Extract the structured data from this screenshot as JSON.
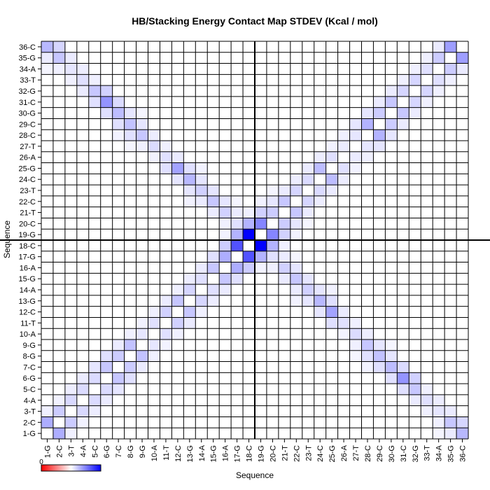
{
  "chart_data": {
    "type": "heatmap",
    "title": "HB/Stacking Energy Contact Map STDEV (Kcal / mol)",
    "xlabel": "Sequence",
    "ylabel": "Sequence",
    "labels": [
      "1-G",
      "2-C",
      "3-T",
      "4-A",
      "5-C",
      "6-G",
      "7-C",
      "8-G",
      "9-G",
      "10-A",
      "11-T",
      "12-C",
      "13-G",
      "14-A",
      "15-G",
      "16-A",
      "17-G",
      "18-C",
      "19-G",
      "20-C",
      "21-T",
      "22-C",
      "23-T",
      "24-C",
      "25-G",
      "26-A",
      "27-T",
      "28-C",
      "29-C",
      "30-G",
      "31-C",
      "32-G",
      "33-T",
      "34-A",
      "35-G",
      "36-C"
    ],
    "x_tick_labels": [
      "1-G",
      "2-C",
      "3-T",
      "4-A",
      "5-C",
      "6-G",
      "7-C",
      "8-G",
      "9-G",
      "10-A",
      "11-T",
      "12-C",
      "13-G",
      "14-A",
      "15-G",
      "16-A",
      "17-G",
      "18-C",
      "19-G",
      "20-C",
      "21-T",
      "22-C",
      "23-T",
      "24-C",
      "25-G",
      "26-A",
      "27-T",
      "28-C",
      "29-C",
      "30-G",
      "31-C",
      "32-G",
      "33-T",
      "34-A",
      "35-G",
      "36-C"
    ],
    "colorbar": {
      "min_label": "0",
      "colors": [
        "#ff0000",
        "#ffffff",
        "#0000ff"
      ]
    },
    "divider_after_index": 18,
    "dominant_cell": {
      "i": 18,
      "j": 19,
      "value": 1.0
    },
    "grid": true,
    "cells": [
      {
        "i": 1,
        "j": 2,
        "v": 0.32
      },
      {
        "i": 2,
        "j": 3,
        "v": 0.2
      },
      {
        "i": 3,
        "j": 4,
        "v": 0.15
      },
      {
        "i": 4,
        "j": 5,
        "v": 0.14
      },
      {
        "i": 5,
        "j": 6,
        "v": 0.14
      },
      {
        "i": 6,
        "j": 7,
        "v": 0.22
      },
      {
        "i": 7,
        "j": 8,
        "v": 0.2
      },
      {
        "i": 8,
        "j": 9,
        "v": 0.24
      },
      {
        "i": 9,
        "j": 10,
        "v": 0.1
      },
      {
        "i": 10,
        "j": 11,
        "v": 0.12
      },
      {
        "i": 11,
        "j": 12,
        "v": 0.18
      },
      {
        "i": 12,
        "j": 13,
        "v": 0.22
      },
      {
        "i": 13,
        "j": 14,
        "v": 0.16
      },
      {
        "i": 14,
        "j": 15,
        "v": 0.12
      },
      {
        "i": 15,
        "j": 16,
        "v": 0.22
      },
      {
        "i": 16,
        "j": 17,
        "v": 0.32
      },
      {
        "i": 17,
        "j": 18,
        "v": 0.68
      },
      {
        "i": 18,
        "j": 19,
        "v": 1.0
      },
      {
        "i": 19,
        "j": 20,
        "v": 0.48
      },
      {
        "i": 20,
        "j": 21,
        "v": 0.2
      },
      {
        "i": 21,
        "j": 22,
        "v": 0.22
      },
      {
        "i": 22,
        "j": 23,
        "v": 0.16
      },
      {
        "i": 23,
        "j": 24,
        "v": 0.14
      },
      {
        "i": 24,
        "j": 25,
        "v": 0.26
      },
      {
        "i": 25,
        "j": 26,
        "v": 0.12
      },
      {
        "i": 26,
        "j": 27,
        "v": 0.08
      },
      {
        "i": 27,
        "j": 28,
        "v": 0.1
      },
      {
        "i": 28,
        "j": 29,
        "v": 0.3
      },
      {
        "i": 29,
        "j": 30,
        "v": 0.2
      },
      {
        "i": 30,
        "j": 31,
        "v": 0.22
      },
      {
        "i": 31,
        "j": 32,
        "v": 0.16
      },
      {
        "i": 32,
        "j": 33,
        "v": 0.16
      },
      {
        "i": 33,
        "j": 34,
        "v": 0.12
      },
      {
        "i": 34,
        "j": 35,
        "v": 0.2
      },
      {
        "i": 35,
        "j": 36,
        "v": 0.38
      },
      {
        "i": 1,
        "j": 3,
        "v": 0.06
      },
      {
        "i": 2,
        "j": 4,
        "v": 0.05
      },
      {
        "i": 3,
        "j": 5,
        "v": 0.07
      },
      {
        "i": 4,
        "j": 6,
        "v": 0.08
      },
      {
        "i": 5,
        "j": 7,
        "v": 0.1
      },
      {
        "i": 6,
        "j": 8,
        "v": 0.12
      },
      {
        "i": 7,
        "j": 9,
        "v": 0.08
      },
      {
        "i": 8,
        "j": 10,
        "v": 0.06
      },
      {
        "i": 9,
        "j": 11,
        "v": 0.05
      },
      {
        "i": 10,
        "j": 12,
        "v": 0.06
      },
      {
        "i": 11,
        "j": 13,
        "v": 0.08
      },
      {
        "i": 12,
        "j": 14,
        "v": 0.06
      },
      {
        "i": 13,
        "j": 15,
        "v": 0.07
      },
      {
        "i": 14,
        "j": 16,
        "v": 0.08
      },
      {
        "i": 15,
        "j": 17,
        "v": 0.12
      },
      {
        "i": 16,
        "j": 18,
        "v": 0.2
      },
      {
        "i": 17,
        "j": 19,
        "v": 0.3
      },
      {
        "i": 18,
        "j": 20,
        "v": 0.3
      },
      {
        "i": 19,
        "j": 21,
        "v": 0.18
      },
      {
        "i": 20,
        "j": 22,
        "v": 0.1
      },
      {
        "i": 21,
        "j": 23,
        "v": 0.08
      },
      {
        "i": 22,
        "j": 24,
        "v": 0.07
      },
      {
        "i": 23,
        "j": 25,
        "v": 0.08
      },
      {
        "i": 24,
        "j": 26,
        "v": 0.07
      },
      {
        "i": 25,
        "j": 27,
        "v": 0.05
      },
      {
        "i": 26,
        "j": 28,
        "v": 0.06
      },
      {
        "i": 27,
        "j": 29,
        "v": 0.1
      },
      {
        "i": 28,
        "j": 30,
        "v": 0.1
      },
      {
        "i": 29,
        "j": 31,
        "v": 0.08
      },
      {
        "i": 30,
        "j": 32,
        "v": 0.08
      },
      {
        "i": 31,
        "j": 33,
        "v": 0.06
      },
      {
        "i": 32,
        "j": 34,
        "v": 0.06
      },
      {
        "i": 33,
        "j": 35,
        "v": 0.06
      },
      {
        "i": 34,
        "j": 36,
        "v": 0.08
      },
      {
        "i": 1,
        "j": 36,
        "v": 0.28
      },
      {
        "i": 2,
        "j": 35,
        "v": 0.22
      },
      {
        "i": 3,
        "j": 34,
        "v": 0.1
      },
      {
        "i": 4,
        "j": 33,
        "v": 0.12
      },
      {
        "i": 5,
        "j": 32,
        "v": 0.22
      },
      {
        "i": 6,
        "j": 31,
        "v": 0.42
      },
      {
        "i": 7,
        "j": 30,
        "v": 0.26
      },
      {
        "i": 8,
        "j": 29,
        "v": 0.24
      },
      {
        "i": 9,
        "j": 28,
        "v": 0.22
      },
      {
        "i": 10,
        "j": 27,
        "v": 0.14
      },
      {
        "i": 11,
        "j": 26,
        "v": 0.12
      },
      {
        "i": 12,
        "j": 25,
        "v": 0.36
      },
      {
        "i": 13,
        "j": 24,
        "v": 0.28
      },
      {
        "i": 14,
        "j": 23,
        "v": 0.18
      },
      {
        "i": 15,
        "j": 22,
        "v": 0.22
      },
      {
        "i": 16,
        "j": 21,
        "v": 0.18
      },
      {
        "i": 17,
        "j": 20,
        "v": 0.12
      },
      {
        "i": 1,
        "j": 35,
        "v": 0.08
      },
      {
        "i": 2,
        "j": 36,
        "v": 0.16
      },
      {
        "i": 2,
        "j": 34,
        "v": 0.06
      },
      {
        "i": 3,
        "j": 35,
        "v": 0.08
      },
      {
        "i": 3,
        "j": 33,
        "v": 0.06
      },
      {
        "i": 4,
        "j": 34,
        "v": 0.07
      },
      {
        "i": 4,
        "j": 32,
        "v": 0.08
      },
      {
        "i": 5,
        "j": 33,
        "v": 0.06
      },
      {
        "i": 5,
        "j": 31,
        "v": 0.12
      },
      {
        "i": 6,
        "j": 32,
        "v": 0.18
      },
      {
        "i": 6,
        "j": 30,
        "v": 0.12
      },
      {
        "i": 7,
        "j": 31,
        "v": 0.14
      },
      {
        "i": 7,
        "j": 29,
        "v": 0.12
      },
      {
        "i": 8,
        "j": 30,
        "v": 0.1
      },
      {
        "i": 8,
        "j": 28,
        "v": 0.12
      },
      {
        "i": 9,
        "j": 29,
        "v": 0.1
      },
      {
        "i": 9,
        "j": 27,
        "v": 0.06
      },
      {
        "i": 10,
        "j": 28,
        "v": 0.07
      },
      {
        "i": 10,
        "j": 26,
        "v": 0.05
      },
      {
        "i": 11,
        "j": 27,
        "v": 0.06
      },
      {
        "i": 11,
        "j": 25,
        "v": 0.12
      },
      {
        "i": 12,
        "j": 26,
        "v": 0.08
      },
      {
        "i": 12,
        "j": 24,
        "v": 0.1
      },
      {
        "i": 13,
        "j": 25,
        "v": 0.12
      },
      {
        "i": 13,
        "j": 23,
        "v": 0.1
      },
      {
        "i": 14,
        "j": 24,
        "v": 0.1
      },
      {
        "i": 14,
        "j": 22,
        "v": 0.08
      },
      {
        "i": 15,
        "j": 23,
        "v": 0.1
      },
      {
        "i": 15,
        "j": 21,
        "v": 0.08
      },
      {
        "i": 16,
        "j": 22,
        "v": 0.1
      },
      {
        "i": 16,
        "j": 20,
        "v": 0.06
      },
      {
        "i": 17,
        "j": 21,
        "v": 0.08
      },
      {
        "i": 1,
        "j": 34,
        "v": 0.04
      },
      {
        "i": 7,
        "j": 28,
        "v": 0.05
      },
      {
        "i": 8,
        "j": 27,
        "v": 0.04
      },
      {
        "i": 9,
        "j": 30,
        "v": 0.04
      },
      {
        "i": 13,
        "j": 22,
        "v": 0.05
      },
      {
        "i": 14,
        "j": 25,
        "v": 0.05
      },
      {
        "i": 16,
        "j": 19,
        "v": 0.05
      },
      {
        "i": 20,
        "j": 23,
        "v": 0.04
      },
      {
        "i": 18,
        "j": 21,
        "v": 0.06
      },
      {
        "i": 17,
        "j": 22,
        "v": 0.04
      },
      {
        "i": 19,
        "j": 22,
        "v": 0.05
      }
    ]
  }
}
